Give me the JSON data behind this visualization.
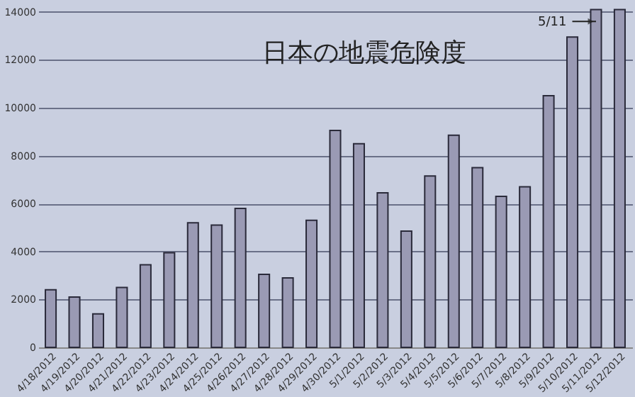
{
  "chart_data": {
    "type": "bar",
    "title": "日本の地震危険度",
    "categories": [
      "4/18/2012",
      "4/19/2012",
      "4/20/2012",
      "4/21/2012",
      "4/22/2012",
      "4/23/2012",
      "4/24/2012",
      "4/25/2012",
      "4/26/2012",
      "4/27/2012",
      "4/28/2012",
      "4/29/2012",
      "4/30/2012",
      "5/1/2012",
      "5/2/2012",
      "5/3/2012",
      "5/4/2012",
      "5/5/2012",
      "5/6/2012",
      "5/7/2012",
      "5/8/2012",
      "5/9/2012",
      "5/10/2012",
      "5/11/2012",
      "5/12/2012"
    ],
    "values": [
      2400,
      2100,
      1400,
      2500,
      3450,
      3950,
      5200,
      5100,
      5800,
      3050,
      2900,
      5300,
      9050,
      8500,
      6450,
      4850,
      7150,
      8850,
      7500,
      6300,
      6700,
      10500,
      12950,
      14100,
      14100
    ],
    "color": "#9a9ab4",
    "ylim": [
      0,
      14200
    ],
    "yticks": [
      0,
      2000,
      4000,
      6000,
      8000,
      10000,
      12000,
      14000
    ],
    "grid": "y",
    "annotations": [
      {
        "text": "5/11",
        "x": "5/11/2012",
        "y": 13600
      }
    ]
  }
}
